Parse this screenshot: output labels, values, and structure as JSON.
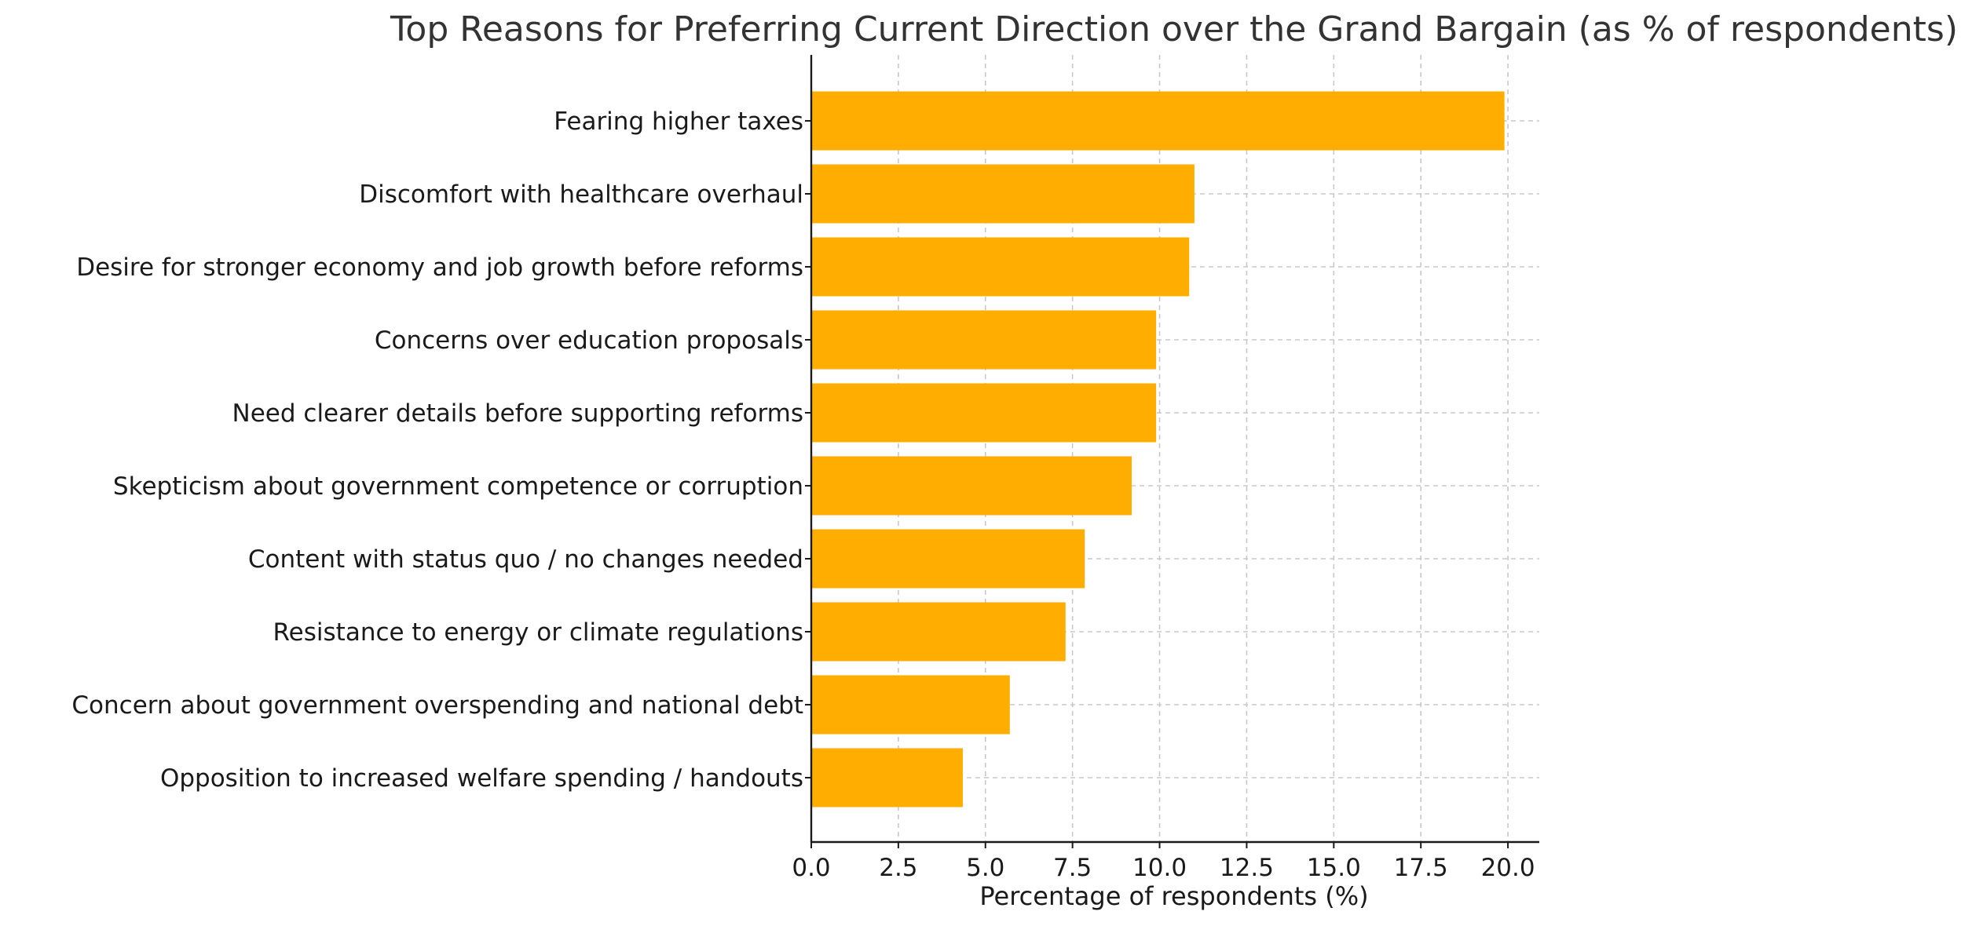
{
  "chart_data": {
    "type": "bar",
    "orientation": "horizontal",
    "title": "Top Reasons for Preferring Current Direction over the Grand Bargain (as % of respondents)",
    "xlabel": "Percentage of respondents (%)",
    "ylabel": "",
    "categories": [
      "Fearing higher taxes",
      "Discomfort with healthcare overhaul",
      "Desire for stronger economy and job growth before reforms",
      "Concerns over education proposals",
      "Need clearer details before supporting reforms",
      "Skepticism about government competence or corruption",
      "Content with status quo / no changes needed",
      "Resistance to energy or climate regulations",
      "Concern about government overspending and national debt",
      "Opposition to increased welfare spending / handouts"
    ],
    "values": [
      19.9,
      11.0,
      10.85,
      9.9,
      9.9,
      9.2,
      7.85,
      7.3,
      5.7,
      4.35
    ],
    "xlim": [
      0,
      20.9
    ],
    "xticks": [
      "0.0",
      "2.5",
      "5.0",
      "7.5",
      "10.0",
      "12.5",
      "15.0",
      "17.5",
      "20.0"
    ],
    "grid": true,
    "legend": "none",
    "bar_color": "#ffae00"
  }
}
